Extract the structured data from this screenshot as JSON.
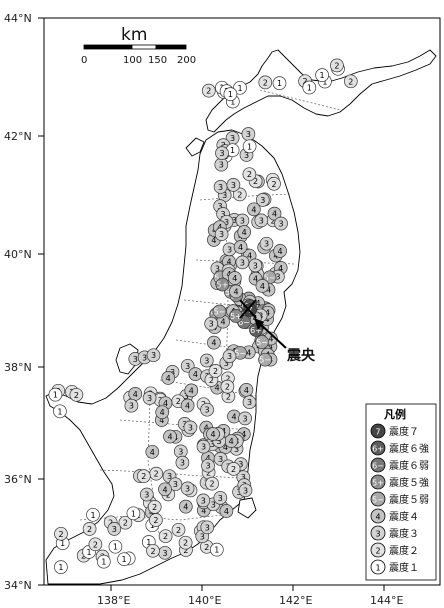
{
  "axes": {
    "lat_labels": [
      "44°N",
      "42°N",
      "40°N",
      "38°N",
      "36°N",
      "34°N"
    ],
    "lon_labels": [
      "138°E",
      "140°E",
      "142°E",
      "144°E"
    ]
  },
  "scale_bar": {
    "unit": "km",
    "ticks": [
      "0",
      "100",
      "150",
      "200"
    ]
  },
  "epicenter_label": "震央",
  "legend": {
    "title": "凡例",
    "items": [
      {
        "symbol": "7",
        "label": "震度７",
        "fill": "#454545",
        "text_color": "#ffffff"
      },
      {
        "symbol": "6+",
        "label": "震度６強",
        "fill": "#5e5e5e",
        "text_color": "#ffffff"
      },
      {
        "symbol": "6−",
        "label": "震度６弱",
        "fill": "#777777",
        "text_color": "#ffffff"
      },
      {
        "symbol": "5+",
        "label": "震度５強",
        "fill": "#8f8f8f",
        "text_color": "#ffffff"
      },
      {
        "symbol": "5−",
        "label": "震度５弱",
        "fill": "#a9a9a9",
        "text_color": "#ffffff"
      },
      {
        "symbol": "4",
        "label": "震度４",
        "fill": "#c4c4c4",
        "text_color": "#000000"
      },
      {
        "symbol": "3",
        "label": "震度３",
        "fill": "#d3d3d3",
        "text_color": "#000000"
      },
      {
        "symbol": "2",
        "label": "震度２",
        "fill": "#e2e2e2",
        "text_color": "#000000"
      },
      {
        "symbol": "1",
        "label": "震度１",
        "fill": "#ffffff",
        "text_color": "#000000"
      }
    ]
  }
}
